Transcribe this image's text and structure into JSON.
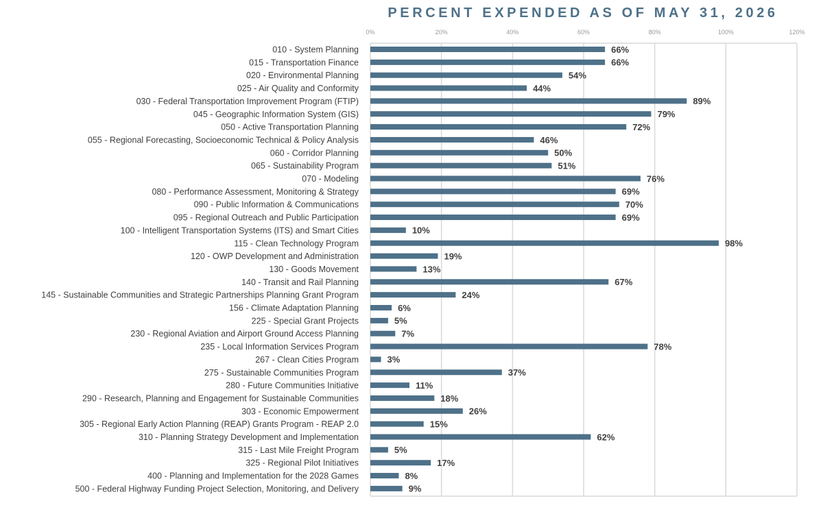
{
  "title": "PERCENT EXPENDED AS OF MAY 31, 2026",
  "colors": {
    "bar": "#4e7189",
    "title": "#4e7189",
    "gridline": "#d9d9d9",
    "label_text": "#404040",
    "tick_text": "#9a9a9a"
  },
  "chart_data": {
    "type": "bar",
    "orientation": "horizontal",
    "title": "PERCENT EXPENDED AS OF MAY 31, 2026",
    "xlabel": "",
    "ylabel": "",
    "xlim": [
      0,
      120
    ],
    "x_ticks": [
      "0%",
      "20%",
      "40%",
      "60%",
      "80%",
      "100%",
      "120%"
    ],
    "x_axis_position": "top",
    "grid": true,
    "legend": "none",
    "categories": [
      "010 - System Planning",
      "015 - Transportation Finance",
      "020 - Environmental Planning",
      "025 - Air Quality and Conformity",
      "030 - Federal Transportation Improvement Program (FTIP)",
      "045 - Geographic Information System (GIS)",
      "050 - Active Transportation Planning",
      "055 - Regional Forecasting, Socioeconomic Technical & Policy Analysis",
      "060 - Corridor Planning",
      "065 - Sustainability Program",
      "070 - Modeling",
      "080 - Performance Assessment, Monitoring & Strategy",
      "090 - Public Information & Communications",
      "095 - Regional Outreach and Public Participation",
      "100 - Intelligent Transportation Systems (ITS) and Smart Cities",
      "115 - Clean Technology Program",
      "120 - OWP Development and Administration",
      "130 - Goods Movement",
      "140 - Transit and Rail Planning",
      "145 - Sustainable Communities and Strategic Partnerships Planning Grant Program",
      "156 - Climate Adaptation Planning",
      "225 - Special Grant Projects",
      "230 - Regional Aviation and Airport Ground Access Planning",
      "235 - Local Information Services Program",
      "267 - Clean Cities Program",
      "275 - Sustainable Communities Program",
      "280 - Future Communities Initiative",
      "290 - Research, Planning and Engagement for Sustainable Communities",
      "303 - Economic Empowerment",
      "305 - Regional Early Action Planning (REAP) Grants Program - REAP 2.0",
      "310 - Planning Strategy Development and Implementation",
      "315 - Last Mile Freight Program",
      "325 - Regional Pilot Initiatives",
      "400 - Planning and Implementation for the 2028 Games",
      "500 - Federal Highway Funding Project Selection, Monitoring, and Delivery"
    ],
    "values": [
      66,
      66,
      54,
      44,
      89,
      79,
      72,
      46,
      50,
      51,
      76,
      69,
      70,
      69,
      10,
      98,
      19,
      13,
      67,
      24,
      6,
      5,
      7,
      78,
      3,
      37,
      11,
      18,
      26,
      15,
      62,
      5,
      17,
      8,
      9
    ],
    "value_labels": [
      "66%",
      "66%",
      "54%",
      "44%",
      "89%",
      "79%",
      "72%",
      "46%",
      "50%",
      "51%",
      "76%",
      "69%",
      "70%",
      "69%",
      "10%",
      "98%",
      "19%",
      "13%",
      "67%",
      "24%",
      "6%",
      "5%",
      "7%",
      "78%",
      "3%",
      "37%",
      "11%",
      "18%",
      "26%",
      "15%",
      "62%",
      "5%",
      "17%",
      "8%",
      "9%"
    ]
  }
}
